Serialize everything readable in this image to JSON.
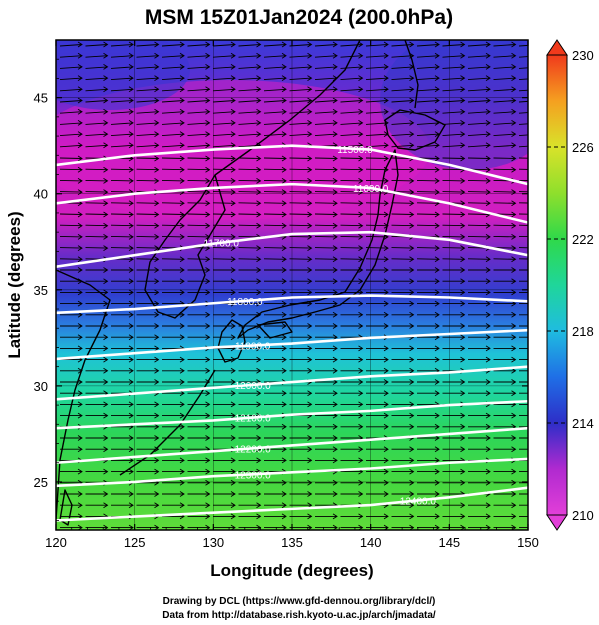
{
  "title": "MSM 15Z01Jan2024 (200.0hPa)",
  "credits": [
    "Drawing by DCL (https://www.gfd-dennou.org/library/dcl/)",
    "Data from http://database.rish.kyoto-u.ac.jp/arch/jmadata/"
  ],
  "chart_data": {
    "type": "map",
    "xlabel": "Longitude (degrees)",
    "ylabel": "Latitude  (degrees)",
    "xlim": [
      120,
      150
    ],
    "ylim": [
      22.5,
      48
    ],
    "xticks": [
      120,
      125,
      130,
      135,
      140,
      145,
      150
    ],
    "yticks": [
      25,
      30,
      35,
      40,
      45
    ],
    "colorbar": {
      "min": 210,
      "max": 230,
      "labels": [
        210,
        214,
        218,
        222,
        226,
        230
      ]
    },
    "contours": [
      {
        "value": 11500,
        "label": "11500.0",
        "label_lon": 139.0
      },
      {
        "value": 11600,
        "label": "11600.0",
        "label_lon": 140.0
      },
      {
        "value": 11700,
        "label": "11700.0",
        "label_lon": 130.5
      },
      {
        "value": 11800,
        "label": "11800.0",
        "label_lon": 132.0
      },
      {
        "value": 11900,
        "label": "11900.0",
        "label_lon": 132.5
      },
      {
        "value": 12000,
        "label": "12000.0",
        "label_lon": 132.5
      },
      {
        "value": 12100,
        "label": "12100.0",
        "label_lon": 132.5
      },
      {
        "value": 12200,
        "label": "12200.0",
        "label_lon": 132.5
      },
      {
        "value": 12300,
        "label": "12300.0",
        "label_lon": 132.5
      },
      {
        "value": 12400,
        "label": "12400.0",
        "label_lon": 143.0
      }
    ],
    "contour_lats": [
      [
        41.5,
        42.0,
        42.3,
        42.5,
        42.3,
        41.5,
        40.5
      ],
      [
        39.5,
        40.0,
        40.3,
        40.5,
        40.3,
        39.5,
        38.5
      ],
      [
        36.2,
        36.8,
        37.4,
        37.9,
        38.0,
        37.6,
        36.8
      ],
      [
        33.8,
        34.0,
        34.3,
        34.6,
        34.7,
        34.6,
        34.4
      ],
      [
        31.4,
        31.7,
        32.0,
        32.2,
        32.5,
        32.7,
        32.9
      ],
      [
        29.3,
        29.6,
        29.9,
        30.2,
        30.5,
        30.7,
        31.0
      ],
      [
        27.8,
        28.0,
        28.2,
        28.5,
        28.7,
        29.0,
        29.2
      ],
      [
        26.0,
        26.3,
        26.6,
        26.9,
        27.2,
        27.5,
        27.8
      ],
      [
        24.8,
        25.0,
        25.3,
        25.5,
        25.7,
        26.0,
        26.2
      ],
      [
        23.0,
        23.2,
        23.4,
        23.6,
        23.8,
        24.2,
        24.7
      ]
    ]
  }
}
